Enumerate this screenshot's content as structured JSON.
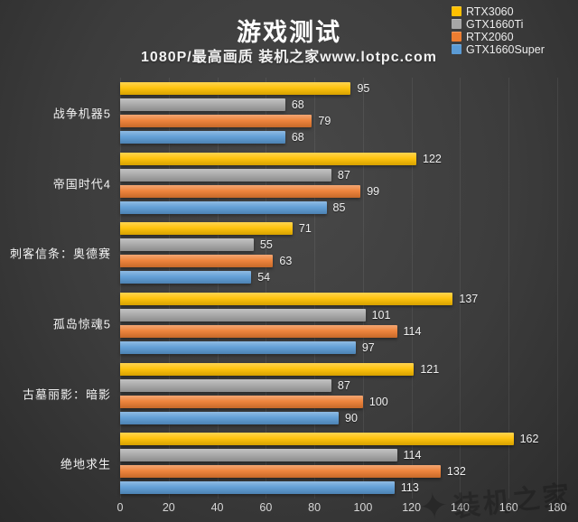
{
  "title": "游戏测试",
  "subtitle": "1080P/最高画质 装机之家www.lotpc.com",
  "watermark_text": "装机之家",
  "colors": {
    "background_center": "#484848",
    "background_edge": "#2b2b2b",
    "text": "#ffffff",
    "axis_text": "#d6d6d6",
    "gridline": "rgba(255,255,255,0.07)"
  },
  "chart_data": {
    "type": "bar",
    "orientation": "horizontal",
    "title": "游戏测试",
    "subtitle": "1080P/最高画质 装机之家www.lotpc.com",
    "categories": [
      "战争机器5",
      "帝国时代4",
      "刺客信条：奥德赛",
      "孤岛惊魂5",
      "古墓丽影：暗影",
      "绝地求生"
    ],
    "series": [
      {
        "name": "RTX3060",
        "color": "#FFC000",
        "values": [
          95,
          122,
          71,
          137,
          121,
          162
        ]
      },
      {
        "name": "GTX1660Ti",
        "color": "#A6A6A6",
        "values": [
          68,
          87,
          55,
          101,
          87,
          114
        ]
      },
      {
        "name": "RTX2060",
        "color": "#ED7D31",
        "values": [
          79,
          99,
          63,
          114,
          100,
          132
        ]
      },
      {
        "name": "GTX1660Super",
        "color": "#5B9BD5",
        "values": [
          68,
          85,
          54,
          97,
          90,
          113
        ]
      }
    ],
    "xlim": [
      0,
      180
    ],
    "xticks": [
      0,
      20,
      40,
      60,
      80,
      100,
      120,
      140,
      160,
      180
    ],
    "grid": true,
    "legend_position": "top-right",
    "value_labels": true
  }
}
